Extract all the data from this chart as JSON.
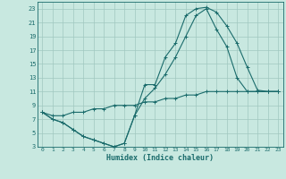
{
  "xlabel": "Humidex (Indice chaleur)",
  "bg_color": "#c8e8e0",
  "line_color": "#1a6b6b",
  "grid_color": "#a0c8c0",
  "xlim": [
    -0.5,
    23.5
  ],
  "ylim": [
    3,
    24
  ],
  "xticks": [
    0,
    1,
    2,
    3,
    4,
    5,
    6,
    7,
    8,
    9,
    10,
    11,
    12,
    13,
    14,
    15,
    16,
    17,
    18,
    19,
    20,
    21,
    22,
    23
  ],
  "yticks": [
    3,
    5,
    7,
    9,
    11,
    13,
    15,
    17,
    19,
    21,
    23
  ],
  "line1_x": [
    0,
    1,
    2,
    3,
    4,
    5,
    6,
    7,
    8,
    9,
    10,
    11,
    12,
    13,
    14,
    15,
    16,
    17,
    18,
    19,
    20,
    21,
    22,
    23
  ],
  "line1_y": [
    8,
    7,
    6.5,
    5.5,
    4.5,
    4,
    3.5,
    3,
    3.5,
    7.5,
    12,
    12,
    16,
    18,
    22,
    23,
    23.2,
    22.5,
    20.5,
    18,
    14.5,
    11.2,
    11,
    11
  ],
  "line2_x": [
    0,
    1,
    2,
    3,
    4,
    5,
    6,
    7,
    8,
    9,
    10,
    11,
    12,
    13,
    14,
    15,
    16,
    17,
    18,
    19,
    20,
    21,
    22,
    23
  ],
  "line2_y": [
    8,
    7,
    6.5,
    5.5,
    4.5,
    4,
    3.5,
    3,
    3.5,
    7.5,
    10,
    11.5,
    13.5,
    16,
    19,
    22,
    23,
    20,
    17.5,
    13,
    11,
    11,
    11,
    11
  ],
  "line3_x": [
    0,
    1,
    2,
    3,
    4,
    5,
    6,
    7,
    8,
    9,
    10,
    11,
    12,
    13,
    14,
    15,
    16,
    17,
    18,
    19,
    20,
    21,
    22,
    23
  ],
  "line3_y": [
    8,
    7.5,
    7.5,
    8,
    8,
    8.5,
    8.5,
    9,
    9,
    9,
    9.5,
    9.5,
    10,
    10,
    10.5,
    10.5,
    11,
    11,
    11,
    11,
    11,
    11,
    11,
    11
  ]
}
